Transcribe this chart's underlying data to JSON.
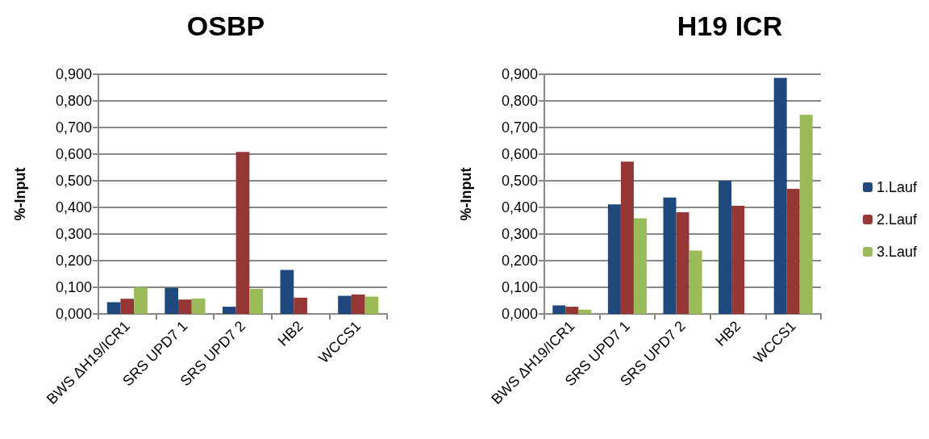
{
  "chart_data": [
    {
      "type": "bar",
      "title": "OSBP",
      "ylabel": "%-Input",
      "categories": [
        "BWS ΔH19/ICR1",
        "SRS UPD7 1",
        "SRS UPD7 2",
        "HB2",
        "WCCS1"
      ],
      "series": [
        {
          "color": "#1f497d",
          "values": [
            0.044,
            0.098,
            0.027,
            0.165,
            0.068
          ]
        },
        {
          "color": "#953735",
          "values": [
            0.057,
            0.054,
            0.608,
            0.061,
            0.073
          ]
        },
        {
          "color": "#9bbb59",
          "values": [
            0.1,
            0.058,
            0.094,
            null,
            0.065
          ]
        }
      ],
      "ylim": [
        0,
        0.9
      ],
      "yticks": [
        {
          "value": 0,
          "label": "0,000"
        },
        {
          "value": 0.1,
          "label": "0,100"
        },
        {
          "value": 0.2,
          "label": "0,200"
        },
        {
          "value": 0.3,
          "label": "0,300"
        },
        {
          "value": 0.4,
          "label": "0,400"
        },
        {
          "value": 0.5,
          "label": "0,500"
        },
        {
          "value": 0.6,
          "label": "0,600"
        },
        {
          "value": 0.7,
          "label": "0,700"
        },
        {
          "value": 0.8,
          "label": "0,800"
        },
        {
          "value": 0.9,
          "label": "0,900"
        }
      ],
      "grid": "y",
      "legend": false
    },
    {
      "type": "bar",
      "title": "H19 ICR",
      "ylabel": "%-Input",
      "categories": [
        "BWS ΔH19/ICR1",
        "SRS UPD7 1",
        "SRS UPD7 2",
        "HB2",
        "WCCS1"
      ],
      "series": [
        {
          "name": "1.Lauf",
          "color": "#1f497d",
          "values": [
            0.032,
            0.411,
            0.437,
            0.5,
            0.886
          ]
        },
        {
          "name": "2.Lauf",
          "color": "#953735",
          "values": [
            0.027,
            0.572,
            0.382,
            0.406,
            0.47
          ]
        },
        {
          "name": "3.Lauf",
          "color": "#9bbb59",
          "values": [
            0.016,
            0.359,
            0.238,
            null,
            0.748
          ]
        }
      ],
      "ylim": [
        0,
        0.9
      ],
      "yticks": [
        {
          "value": 0,
          "label": "0,000"
        },
        {
          "value": 0.1,
          "label": "0,100"
        },
        {
          "value": 0.2,
          "label": "0,200"
        },
        {
          "value": 0.3,
          "label": "0,300"
        },
        {
          "value": 0.4,
          "label": "0,400"
        },
        {
          "value": 0.5,
          "label": "0,500"
        },
        {
          "value": 0.6,
          "label": "0,600"
        },
        {
          "value": 0.7,
          "label": "0,700"
        },
        {
          "value": 0.8,
          "label": "0,800"
        },
        {
          "value": 0.9,
          "label": "0,900"
        }
      ],
      "grid": "y",
      "legend": "right"
    }
  ]
}
